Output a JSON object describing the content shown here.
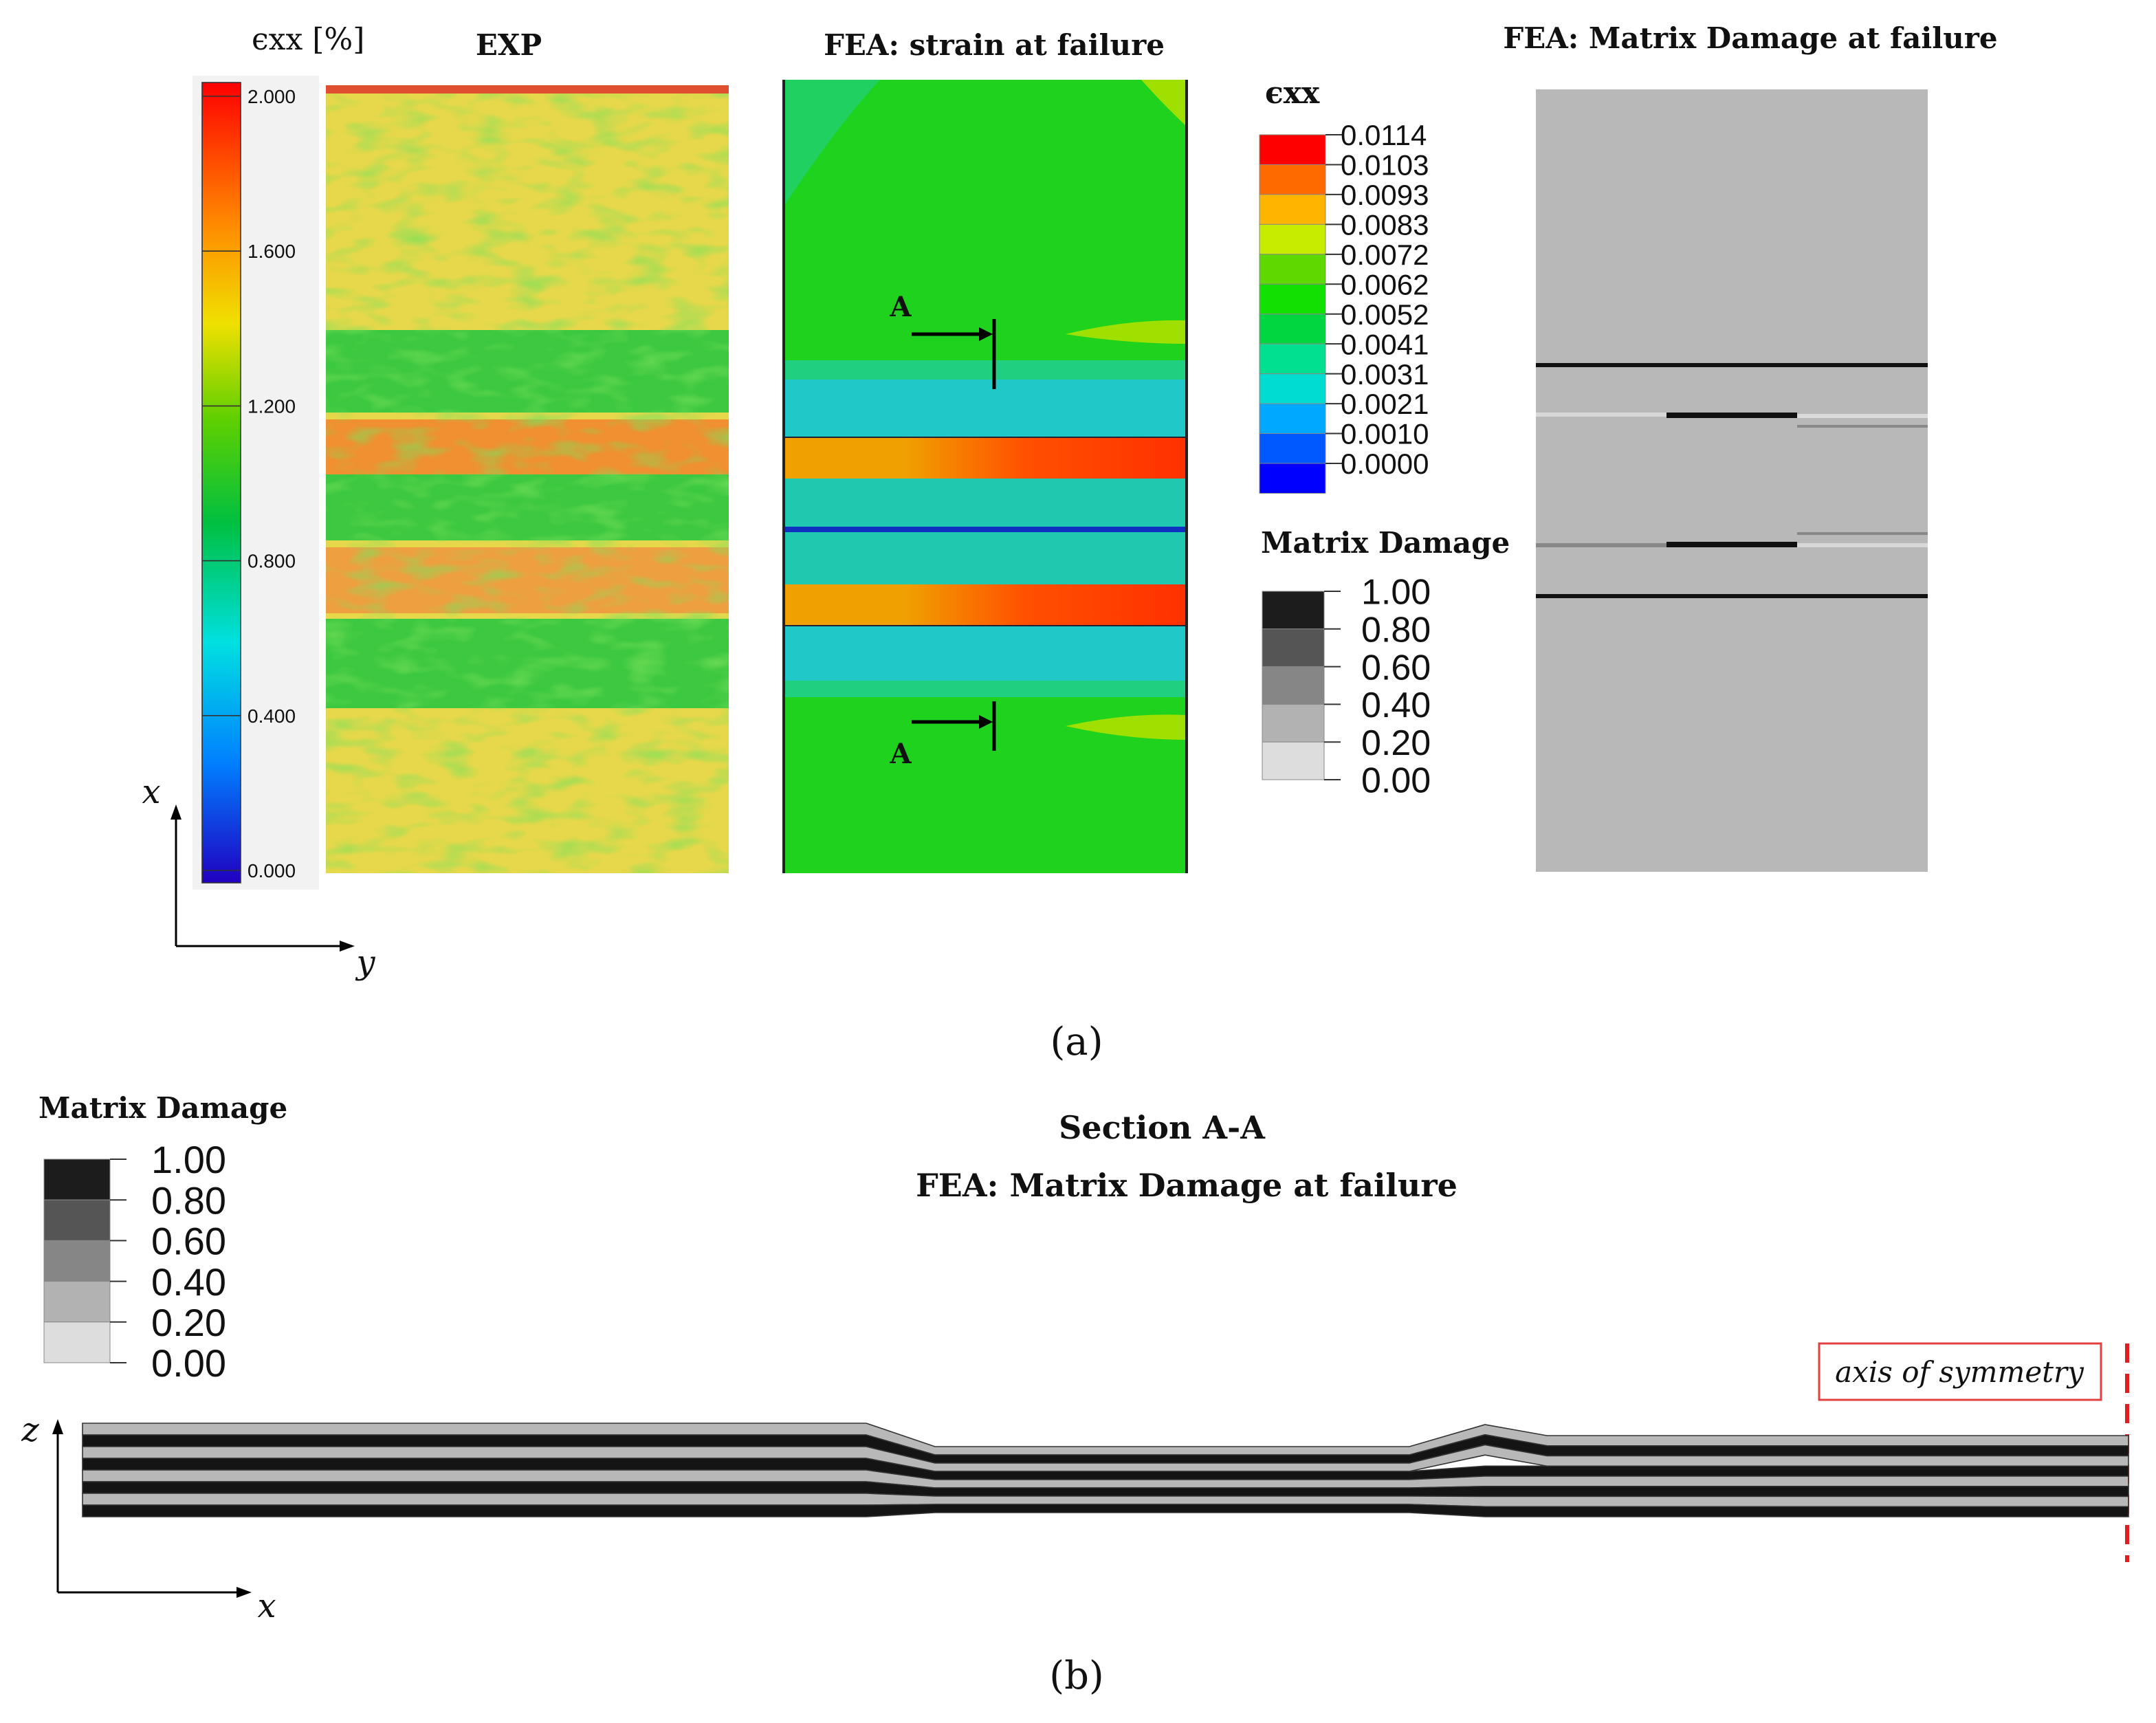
{
  "panel_a": {
    "exp": {
      "colorbar_label": "ϵxx [%]",
      "title": "EXP",
      "ticks": [
        "2.000",
        "1.600",
        "1.200",
        "0.800",
        "0.400",
        "0.000"
      ]
    },
    "fea_strain": {
      "title": "FEA: strain at failure",
      "section_labels": [
        "A",
        "A"
      ],
      "legend": {
        "title": "ϵxx",
        "labels": [
          "0.0114",
          "0.0103",
          "0.0093",
          "0.0083",
          "0.0072",
          "0.0062",
          "0.0052",
          "0.0041",
          "0.0031",
          "0.0021",
          "0.0010",
          "0.0000"
        ],
        "colors": [
          "#ff0000",
          "#ff6a00",
          "#ffb400",
          "#c8ec00",
          "#5fd800",
          "#12e000",
          "#00d640",
          "#00e090",
          "#00dcd0",
          "#00a8ff",
          "#0058ff",
          "#0000ff"
        ]
      }
    },
    "damage_legend": {
      "title": "Matrix Damage",
      "labels": [
        "1.00",
        "0.80",
        "0.60",
        "0.40",
        "0.20",
        "0.00"
      ],
      "colors": [
        "#1c1c1c",
        "#555555",
        "#868686",
        "#b2b2b2",
        "#dddddd"
      ]
    },
    "fea_damage": {
      "title": "FEA: Matrix Damage at failure"
    },
    "axes": {
      "vertical": "x",
      "horizontal": "y"
    },
    "caption": "(a)"
  },
  "panel_b": {
    "damage_legend": {
      "title": "Matrix Damage",
      "labels": [
        "1.00",
        "0.80",
        "0.60",
        "0.40",
        "0.20",
        "0.00"
      ],
      "colors": [
        "#1c1c1c",
        "#555555",
        "#868686",
        "#b2b2b2",
        "#dddddd"
      ]
    },
    "title": "Section A-A",
    "subtitle": "FEA: Matrix Damage at failure",
    "symmetry_label": "axis of symmetry",
    "axes": {
      "vertical": "z",
      "horizontal": "x"
    },
    "caption": "(b)"
  }
}
